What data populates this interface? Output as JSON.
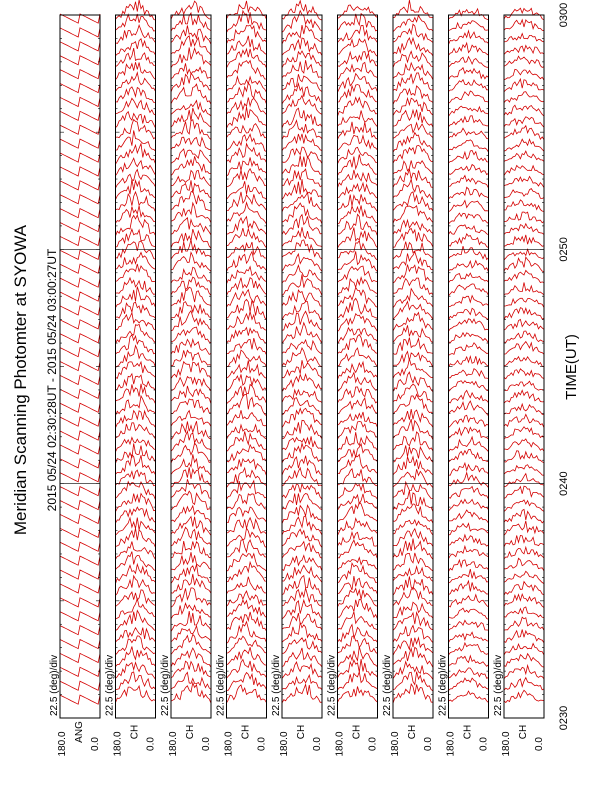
{
  "page": {
    "title": "Meridian Scanning Photomter at SYOWA",
    "time_range": "2015 05/24 02:30:28UT - 2015 05/24 03:00:27UT",
    "xlabel": "TIME(UT)"
  },
  "colors": {
    "trace": "#d40000",
    "frame": "#000000"
  },
  "chart_data": {
    "type": "line",
    "orientation": "rotated-90-ccw",
    "x_ticks": [
      "0230",
      "0240",
      "0250",
      "0300"
    ],
    "panels": [
      {
        "kind": "ANG",
        "scale_label": "22.5 (deg)/div",
        "ylabel": "ANG",
        "ytick_top": "180.0",
        "ytick_bottom": "0.0"
      },
      {
        "kind": "CH",
        "scale_label": "22.5 (deg)/div",
        "ylabel": "CH",
        "ytick_top": "180.0",
        "ytick_bottom": "0.0"
      },
      {
        "kind": "CH",
        "scale_label": "22.5 (deg)/div",
        "ylabel": "CH",
        "ytick_top": "180.0",
        "ytick_bottom": "0.0"
      },
      {
        "kind": "CH",
        "scale_label": "22.5 (deg)/div",
        "ylabel": "CH",
        "ytick_top": "180.0",
        "ytick_bottom": "0.0"
      },
      {
        "kind": "CH",
        "scale_label": "22.5 (deg)/div",
        "ylabel": "CH",
        "ytick_top": "180.0",
        "ytick_bottom": "0.0"
      },
      {
        "kind": "CH",
        "scale_label": "22.5 (deg)/div",
        "ylabel": "CH",
        "ytick_top": "180.0",
        "ytick_bottom": "0.0"
      },
      {
        "kind": "CH",
        "scale_label": "22.5 (deg)/div",
        "ylabel": "CH",
        "ytick_top": "180.0",
        "ytick_bottom": "0.0"
      },
      {
        "kind": "CH",
        "scale_label": "22.5 (deg)/div",
        "ylabel": "CH",
        "ytick_top": "180.0",
        "ytick_bottom": "0.0"
      },
      {
        "kind": "CH",
        "scale_label": "22.5 (deg)/div",
        "ylabel": "CH",
        "ytick_top": "180.0",
        "ytick_bottom": "0.0"
      }
    ]
  }
}
